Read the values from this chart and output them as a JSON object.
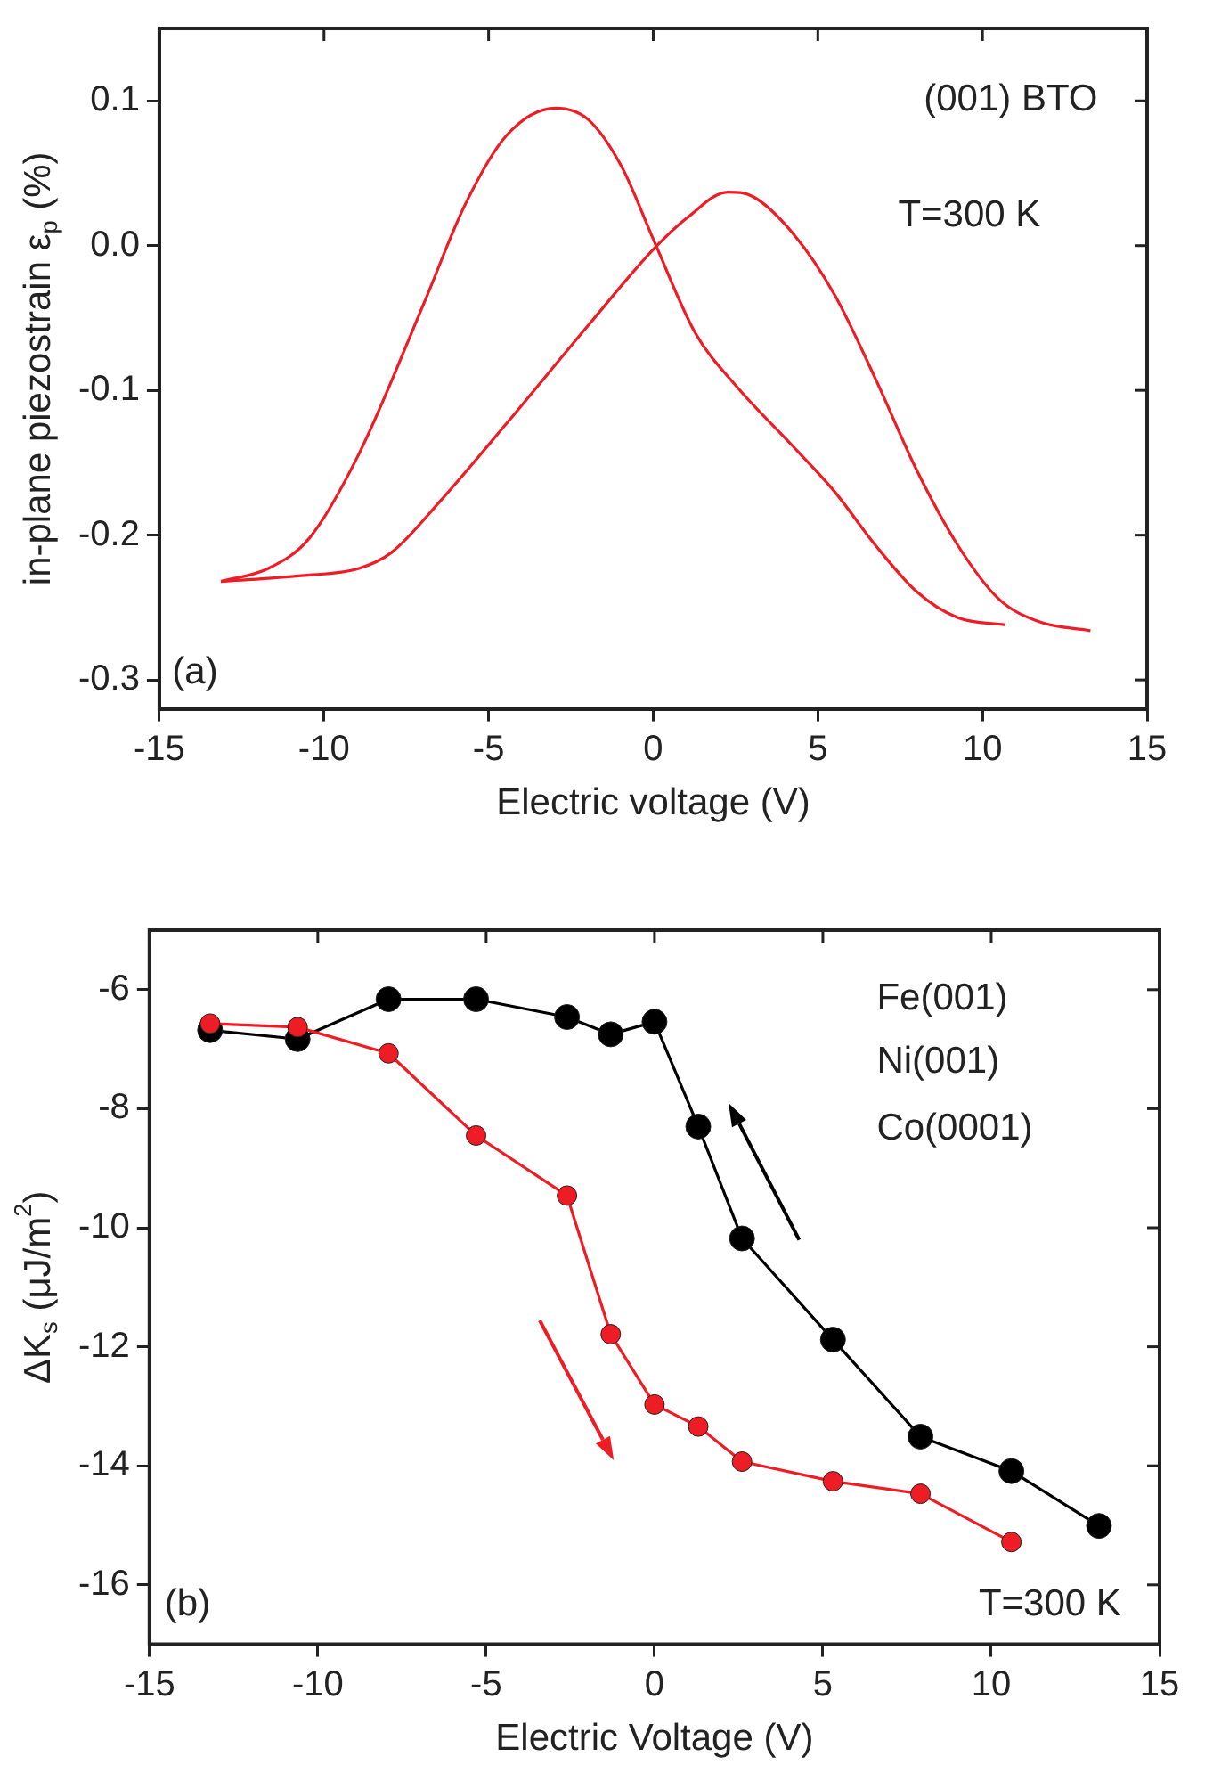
{
  "chart_data": [
    {
      "type": "line",
      "xlabel": "Electric voltage (V)",
      "ylabel": "in-plane piezostrain ε$_{p}$ (%)",
      "xlim": [
        -15,
        15
      ],
      "xticks": [
        -15,
        -10,
        -5,
        0,
        5,
        10,
        15
      ],
      "ylim": [
        -0.32,
        0.15
      ],
      "yticks": [
        -0.3,
        -0.2,
        -0.1,
        {
          "value": 0,
          "label": "0.0"
        },
        0.1
      ],
      "marker": "none",
      "annotations": [
        "(001) BTO",
        "T=300 K",
        "(a)"
      ],
      "series": [
        {
          "color": "#ee1c25",
          "x": [
            -13.13,
            -11.69,
            -10.44,
            -8.94,
            -6.95,
            -5.7,
            -4.46,
            -2.96,
            -1.97,
            -0.97,
            0.03,
            1.27,
            2.52,
            4.26,
            5.51,
            6.75,
            8.0,
            9.25,
            10.69
          ],
          "values": [
            -0.232,
            -0.223,
            -0.202,
            -0.144,
            -0.039,
            0.029,
            0.076,
            0.095,
            0.087,
            0.055,
            0.003,
            -0.06,
            -0.097,
            -0.139,
            -0.17,
            -0.207,
            -0.239,
            -0.257,
            -0.262
          ]
        },
        {
          "color": "#ee1c25",
          "x": [
            -13.13,
            -10.69,
            -8.94,
            -7.95,
            -6.45,
            -4.46,
            -1.97,
            0.03,
            1.02,
            2.27,
            3.02,
            4.26,
            5.51,
            6.75,
            8.0,
            9.25,
            10.49,
            11.74,
            13.28
          ],
          "values": [
            -0.232,
            -0.228,
            -0.223,
            -0.212,
            -0.176,
            -0.123,
            -0.055,
            -0.002,
            0.019,
            0.037,
            0.034,
            0.008,
            -0.034,
            -0.092,
            -0.155,
            -0.207,
            -0.244,
            -0.26,
            -0.266
          ]
        }
      ]
    },
    {
      "type": "line",
      "xlabel": "Electric Voltage (V)",
      "ylabel": "ΔK$_{s}$ (μJ/m$^{2}$)",
      "xlim": [
        -15,
        15
      ],
      "xticks": [
        -15,
        -10,
        -5,
        0,
        5,
        10,
        15
      ],
      "ylim": [
        -17,
        -5
      ],
      "yticks": [
        -16,
        -14,
        -12,
        -10,
        -8,
        -6
      ],
      "marker": "circle",
      "annotations": [
        "Fe(001)",
        "Ni(001)",
        "Co(0001)",
        "T=300 K",
        "(b)"
      ],
      "series": [
        {
          "color": "#000000",
          "x": [
            -13.2,
            -10.6,
            -7.9,
            -5.3,
            -2.6,
            -1.3,
            0,
            1.3,
            2.6,
            5.3,
            7.9,
            10.6,
            13.2
          ],
          "values": [
            -6.68,
            -6.83,
            -6.16,
            -6.16,
            -6.46,
            -6.75,
            -6.54,
            -8.3,
            -10.18,
            -11.88,
            -13.51,
            -14.09,
            -15.01
          ]
        },
        {
          "color": "#ee1c25",
          "x": [
            -13.2,
            -10.6,
            -7.9,
            -5.3,
            -2.6,
            -1.3,
            0,
            1.3,
            2.6,
            5.3,
            7.9,
            10.6
          ],
          "values": [
            -6.57,
            -6.63,
            -7.07,
            -8.45,
            -9.46,
            -11.79,
            -12.97,
            -13.34,
            -13.93,
            -14.26,
            -14.47,
            -15.28
          ]
        }
      ]
    }
  ]
}
